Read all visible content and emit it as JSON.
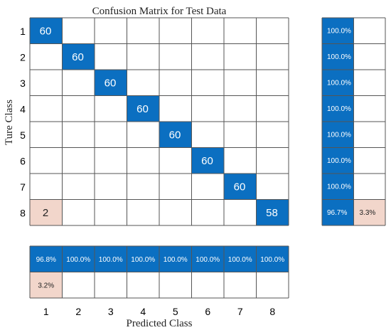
{
  "chart_data": {
    "type": "heatmap",
    "title": "Confusion Matrix for Test Data",
    "xlabel": "Predicted Class",
    "ylabel": "Ture Class",
    "classes": [
      "1",
      "2",
      "3",
      "4",
      "5",
      "6",
      "7",
      "8"
    ],
    "matrix": [
      [
        60,
        0,
        0,
        0,
        0,
        0,
        0,
        0
      ],
      [
        0,
        60,
        0,
        0,
        0,
        0,
        0,
        0
      ],
      [
        0,
        0,
        60,
        0,
        0,
        0,
        0,
        0
      ],
      [
        0,
        0,
        0,
        60,
        0,
        0,
        0,
        0
      ],
      [
        0,
        0,
        0,
        0,
        60,
        0,
        0,
        0
      ],
      [
        0,
        0,
        0,
        0,
        0,
        60,
        0,
        0
      ],
      [
        0,
        0,
        0,
        0,
        0,
        0,
        60,
        0
      ],
      [
        2,
        0,
        0,
        0,
        0,
        0,
        0,
        58
      ]
    ],
    "row_summary": {
      "correct": [
        "100.0%",
        "100.0%",
        "100.0%",
        "100.0%",
        "100.0%",
        "100.0%",
        "100.0%",
        "96.7%"
      ],
      "incorrect": [
        "",
        "",
        "",
        "",
        "",
        "",
        "",
        "3.3%"
      ]
    },
    "column_summary": {
      "correct": [
        "96.8%",
        "100.0%",
        "100.0%",
        "100.0%",
        "100.0%",
        "100.0%",
        "100.0%",
        "100.0%"
      ],
      "incorrect": [
        "3.2%",
        "",
        "",
        "",
        "",
        "",
        "",
        ""
      ]
    },
    "colors": {
      "correct": "#0b6fc1",
      "incorrect": "#f2d6cb",
      "empty": "#ffffff",
      "grid": "#555555",
      "text_on_correct": "#ffffff",
      "text_on_incorrect": "#222222"
    }
  }
}
